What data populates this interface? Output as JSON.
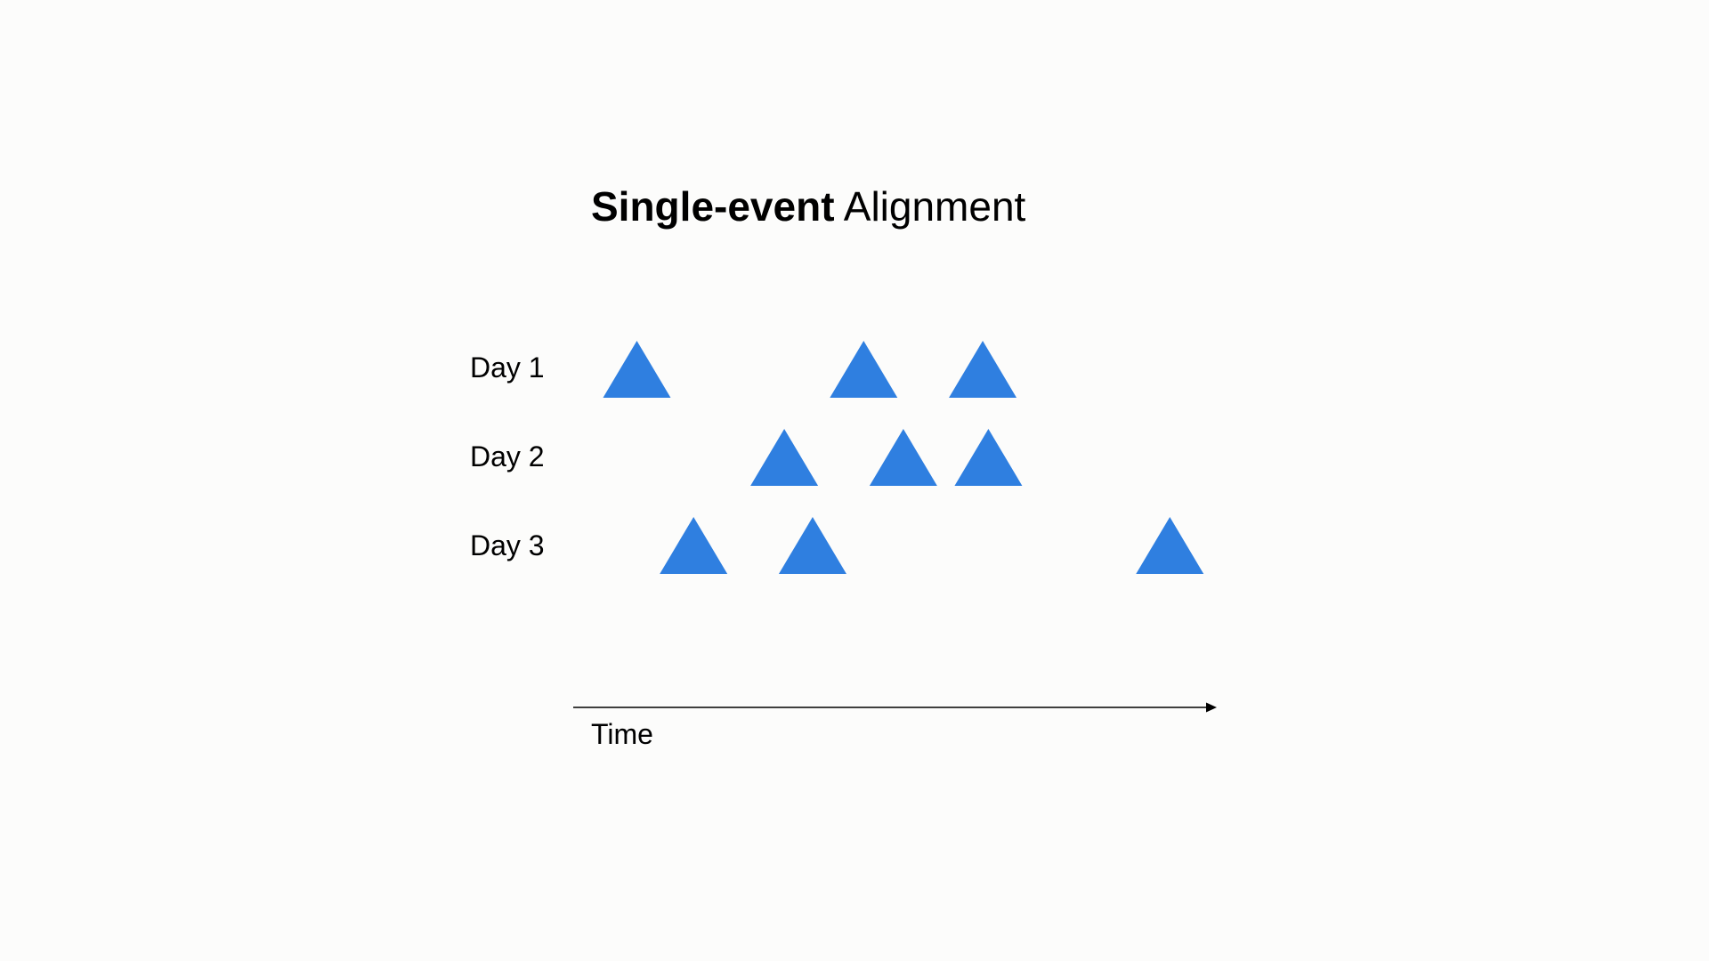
{
  "title": {
    "bold_part": "Single-event",
    "regular_part": " Alignment"
  },
  "axis": {
    "label": "Time"
  },
  "colors": {
    "marker": "#2f7fe0",
    "axis": "#000000",
    "background": "#fcfcfb"
  },
  "rows": [
    {
      "label": "Day 1",
      "events": [
        0.04,
        0.44,
        0.65
      ]
    },
    {
      "label": "Day 2",
      "events": [
        0.3,
        0.51,
        0.66
      ]
    },
    {
      "label": "Day 3",
      "events": [
        0.14,
        0.35,
        0.98
      ]
    }
  ]
}
